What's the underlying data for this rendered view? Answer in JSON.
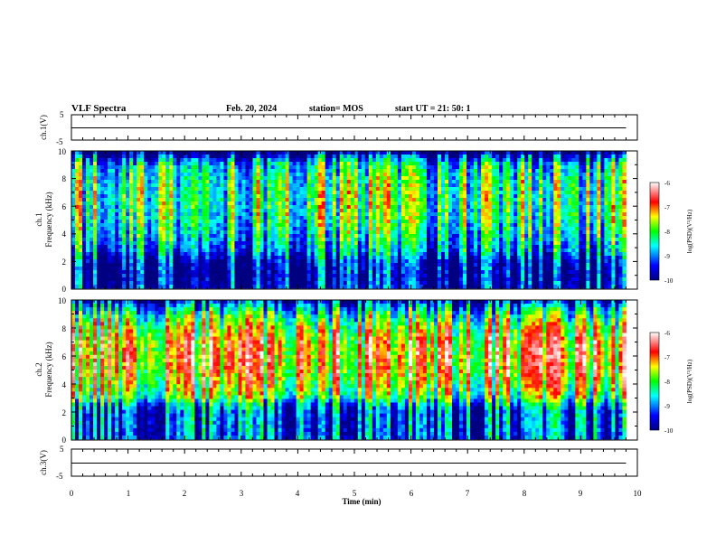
{
  "header": {
    "title": "VLF Spectra",
    "date": "Feb. 20, 2024",
    "station": "station= MOS",
    "start_ut": "start  UT  =   21: 50: 1"
  },
  "x_axis": {
    "label": "Time  (min)",
    "ticks": [
      "0",
      "1",
      "2",
      "3",
      "4",
      "5",
      "6",
      "7",
      "8",
      "9",
      "10"
    ],
    "range": [
      0,
      10
    ]
  },
  "colorbar": {
    "label": "log(PSD)(V²/Hz)",
    "ticks": [
      "-6",
      "-7",
      "-8",
      "-9",
      "-10"
    ],
    "range": [
      -10,
      -6
    ]
  },
  "panels": {
    "ch1_wave": {
      "ylabel": "ch.1(V)",
      "ticks": [
        "5",
        "-5"
      ],
      "range": [
        -5,
        5
      ]
    },
    "ch1_spec": {
      "ylabel": "ch.1",
      "ylabel2": "Frequency  (kHz)",
      "ticks": [
        "10",
        "8",
        "6",
        "4",
        "2",
        "0"
      ],
      "range": [
        0,
        10
      ]
    },
    "ch2_spec": {
      "ylabel": "ch.2",
      "ylabel2": "Frequency  (kHz)",
      "ticks": [
        "10",
        "8",
        "6",
        "4",
        "2",
        "0"
      ],
      "range": [
        0,
        10
      ]
    },
    "ch3_wave": {
      "ylabel": "ch.3(V)",
      "ticks": [
        "5",
        "-5"
      ],
      "range": [
        -5,
        5
      ]
    }
  },
  "colors": {
    "jet": [
      "#000080",
      "#0000ff",
      "#00ffff",
      "#00ff00",
      "#ffff00",
      "#ff0000",
      "#ffffff"
    ]
  },
  "chart_data": [
    {
      "type": "line",
      "name": "ch.1 waveform",
      "xlabel": "Time (min)",
      "ylabel": "ch.1(V)",
      "xlim": [
        0,
        9.8
      ],
      "ylim": [
        -5,
        5
      ],
      "x": [
        0,
        2,
        4,
        6,
        8,
        9.8
      ],
      "values": [
        0,
        0,
        0,
        0,
        0,
        0
      ]
    },
    {
      "type": "heatmap",
      "name": "ch.1 spectrogram",
      "xlabel": "Time (min)",
      "ylabel": "Frequency (kHz)",
      "xlim": [
        0,
        9.8
      ],
      "ylim": [
        0,
        10
      ],
      "zlabel": "log(PSD)(V²/Hz)",
      "zlim": [
        -10,
        -6
      ],
      "freq_profile": {
        "freqs": [
          0,
          1,
          2,
          2.8,
          3.2,
          4,
          5,
          6,
          7,
          8,
          9,
          9.5,
          10
        ],
        "levels": [
          -9.4,
          -9.5,
          -9.3,
          -8.6,
          -8.5,
          -8.2,
          -8.0,
          -7.9,
          -7.9,
          -8.0,
          -8.3,
          -9.0,
          -10
        ]
      }
    },
    {
      "type": "heatmap",
      "name": "ch.2 spectrogram",
      "xlabel": "Time (min)",
      "ylabel": "Frequency (kHz)",
      "xlim": [
        0,
        9.8
      ],
      "ylim": [
        0,
        10
      ],
      "zlabel": "log(PSD)(V²/Hz)",
      "zlim": [
        -10,
        -6
      ],
      "freq_profile": {
        "freqs": [
          0,
          1,
          2,
          2.5,
          3,
          4,
          5,
          6,
          7,
          8,
          9,
          9.5,
          10
        ],
        "levels": [
          -9.0,
          -9.0,
          -9.0,
          -8.5,
          -7.8,
          -7.3,
          -7.0,
          -6.9,
          -7.0,
          -7.4,
          -8.1,
          -8.6,
          -9.5
        ]
      }
    },
    {
      "type": "line",
      "name": "ch.3 waveform",
      "xlabel": "Time (min)",
      "ylabel": "ch.3(V)",
      "xlim": [
        0,
        9.8
      ],
      "ylim": [
        -5,
        5
      ],
      "x": [
        0,
        2,
        4,
        6,
        8,
        9.8
      ],
      "values": [
        0,
        0,
        0,
        0,
        0,
        0
      ]
    }
  ]
}
